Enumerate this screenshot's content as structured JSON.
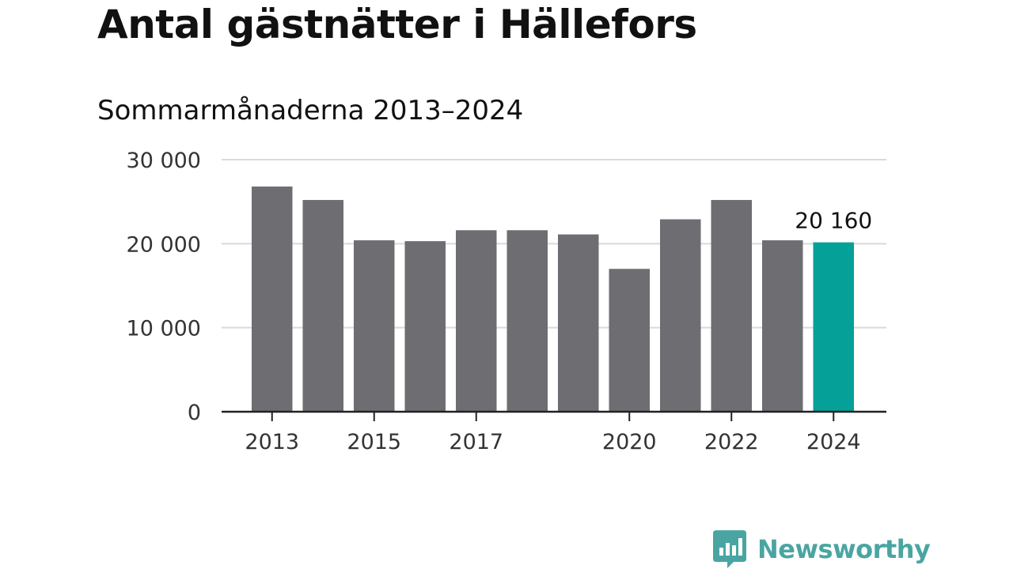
{
  "title": "Antal gästnätter i Hällefors",
  "subtitle": "Sommarmånaderna 2013–2024",
  "brand": {
    "name": "Newsworthy",
    "icon": "newsworthy-logo-icon",
    "color": "#4aa5a2"
  },
  "colors": {
    "bar": "#6e6d72",
    "highlight": "#05a199",
    "grid": "#d9d9d9",
    "axis": "#222222",
    "tick_label": "#333333"
  },
  "chart_data": {
    "type": "bar",
    "title": "Antal gästnätter i Hällefors",
    "subtitle": "Sommarmånaderna 2013–2024",
    "categories": [
      "2013",
      "2014",
      "2015",
      "2016",
      "2017",
      "2018",
      "2019",
      "2020",
      "2021",
      "2022",
      "2023",
      "2024"
    ],
    "values": [
      26800,
      25200,
      20400,
      20300,
      21600,
      21600,
      21100,
      17000,
      22900,
      25200,
      20400,
      20160
    ],
    "highlight_index": 11,
    "data_labels": [
      {
        "index": 11,
        "text": "20 160"
      }
    ],
    "x_tick_labels": [
      "2013",
      "2015",
      "2017",
      "2020",
      "2022",
      "2024"
    ],
    "y_ticks": [
      0,
      10000,
      20000,
      30000
    ],
    "y_tick_labels": [
      "0",
      "10 000",
      "20 000",
      "30 000"
    ],
    "ylim": [
      0,
      30000
    ],
    "xlabel": "",
    "ylabel": "",
    "grid": true,
    "legend": "none"
  }
}
